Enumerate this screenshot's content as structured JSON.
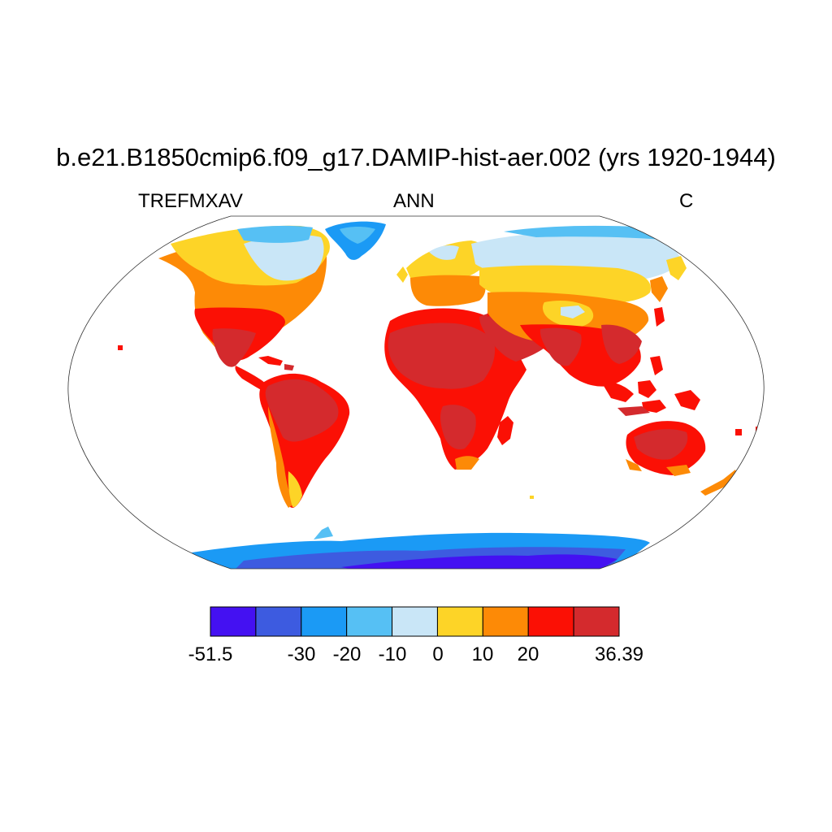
{
  "title": "b.e21.B1850cmip6.f09_g17.DAMIP-hist-aer.002 (yrs 1920-1944)",
  "left_label": "TREFMXAV",
  "center_label": "ANN",
  "right_label": "C",
  "colorbar": {
    "colors": [
      "#4411f2",
      "#3d5be0",
      "#1b9af5",
      "#56c0f4",
      "#c9e6f7",
      "#fdd427",
      "#fd8a06",
      "#fb1005",
      "#d42a2d"
    ],
    "tick_labels": [
      "-51.5",
      "-30",
      "-20",
      "-10",
      "0",
      "10",
      "20",
      "36.39"
    ],
    "min": -51.5,
    "max": 36.39
  }
}
